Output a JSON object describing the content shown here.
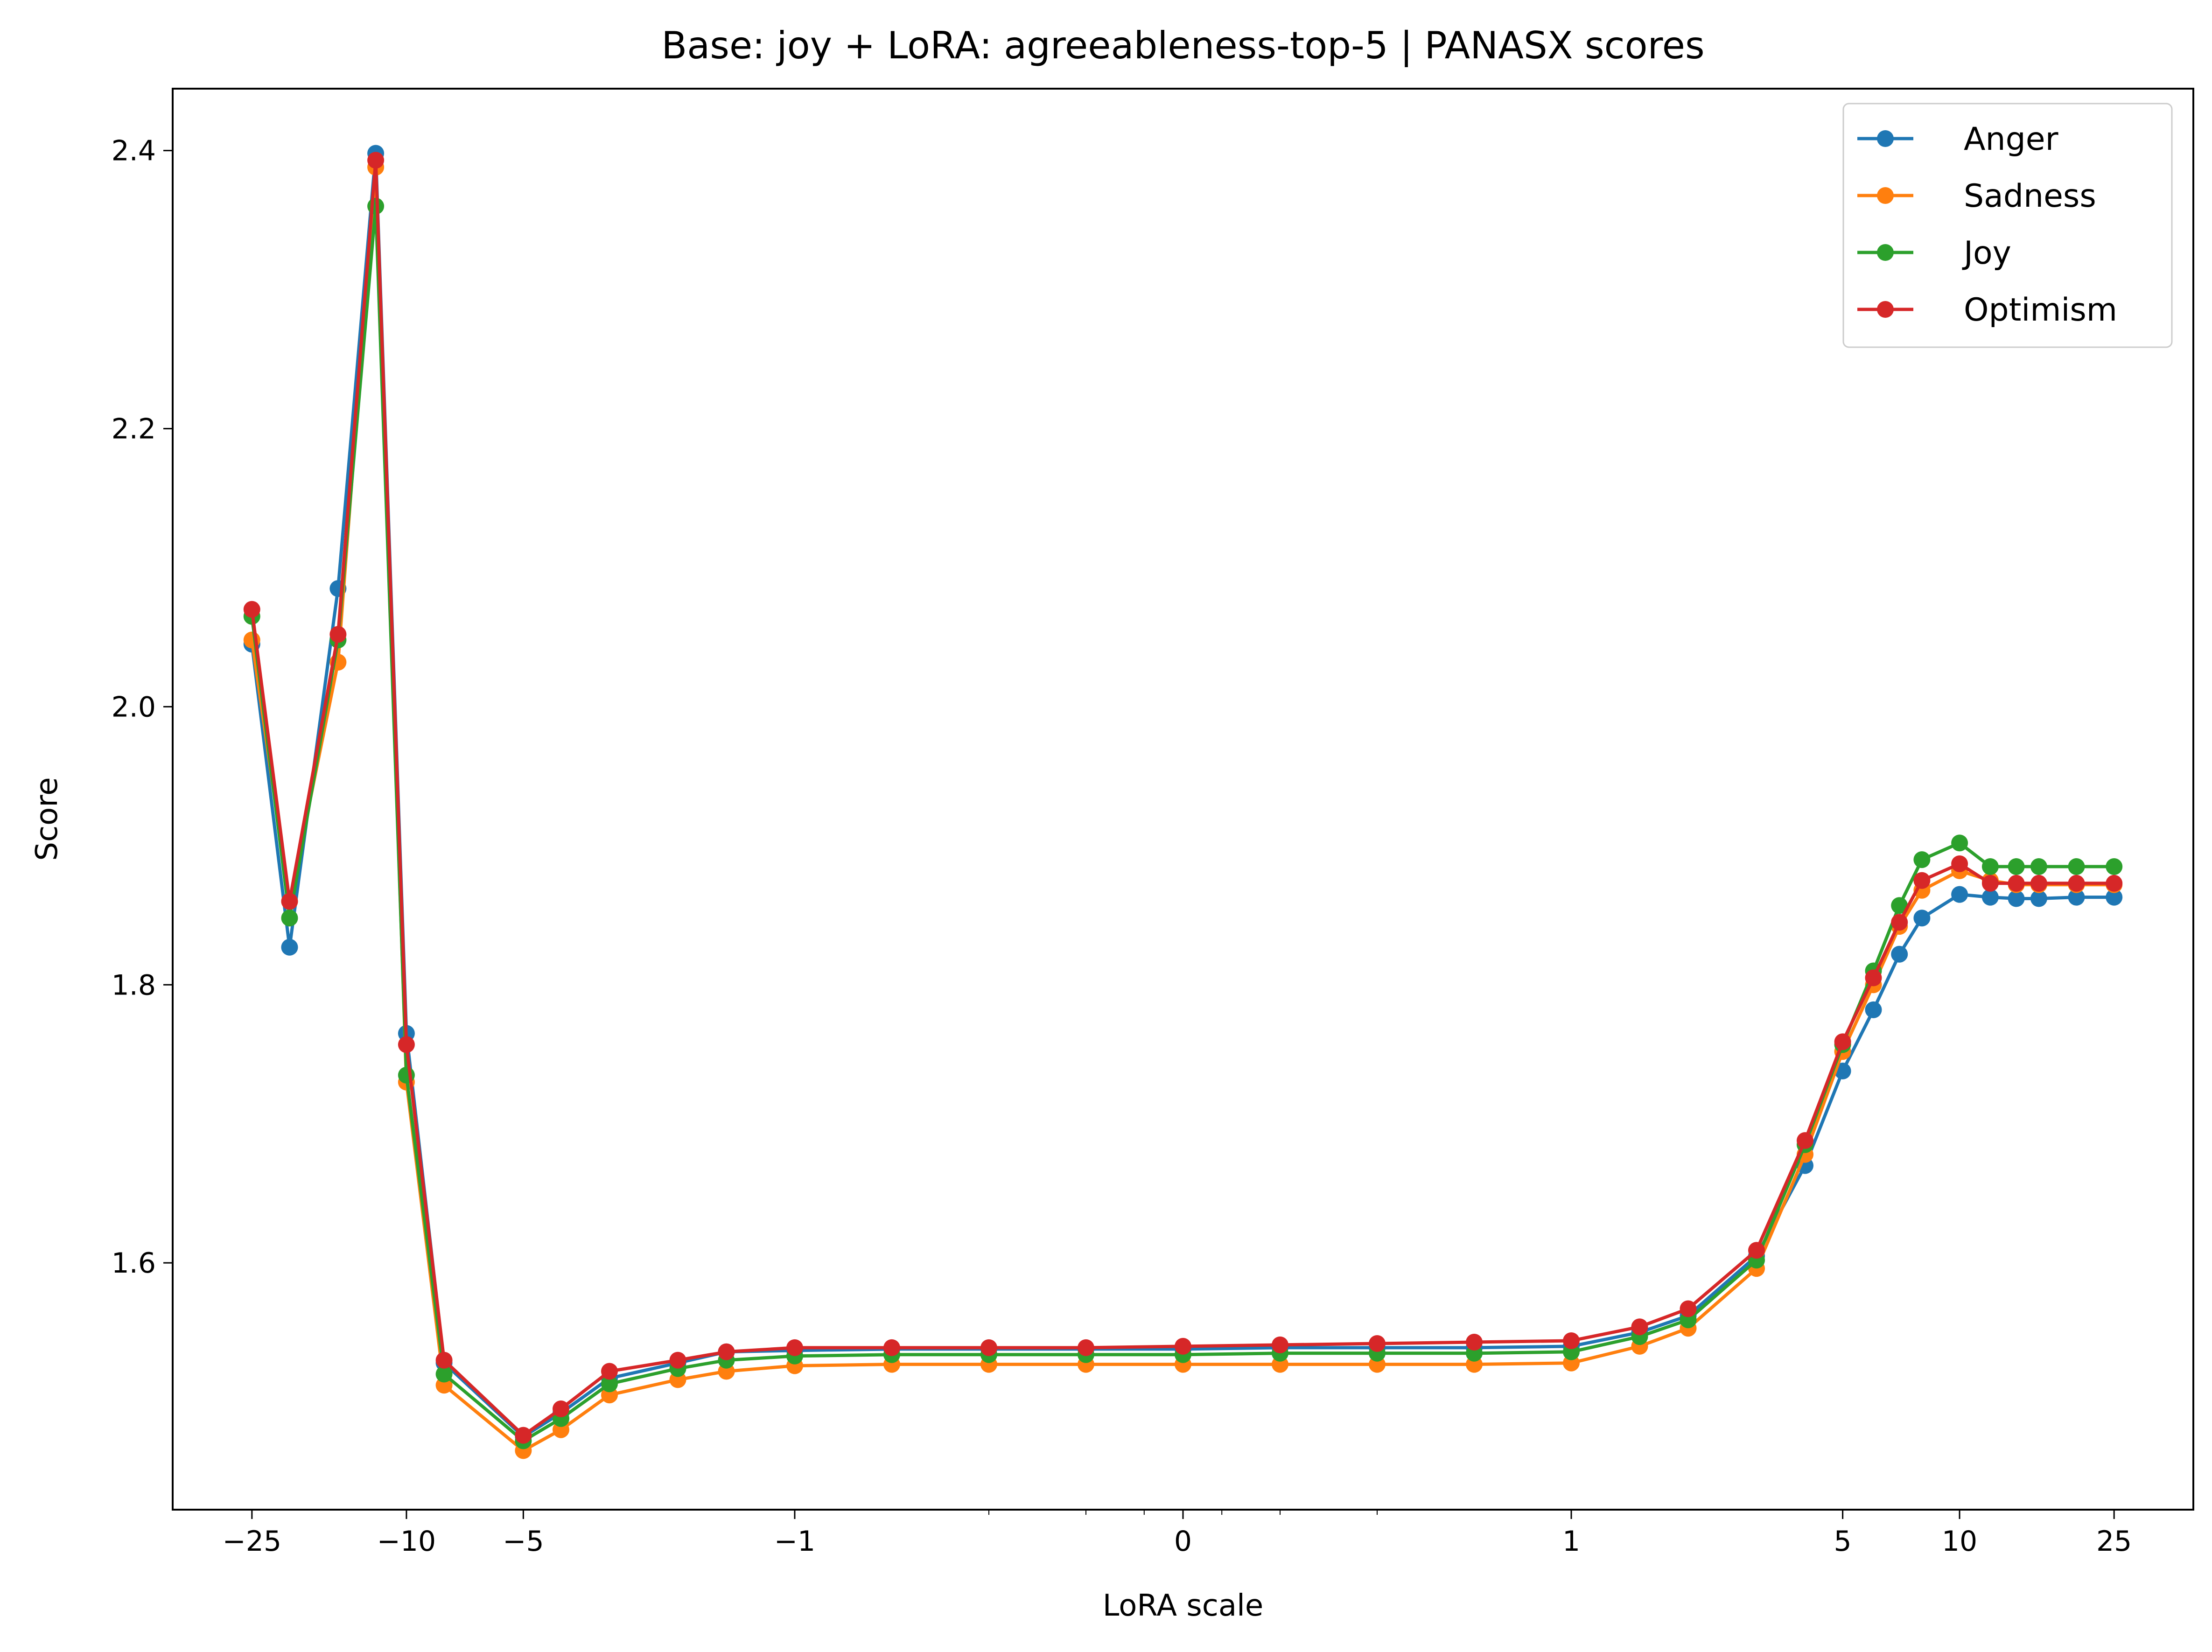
{
  "chart_data": {
    "type": "line",
    "title": "Base: joy + LoRA: agreeableness-top-5 | PANASX scores",
    "xlabel": "LoRA scale",
    "ylabel": "Score",
    "x_scale": "symlog",
    "xlim": [
      -40,
      40
    ],
    "ylim": [
      1.4225,
      2.4445
    ],
    "x_major_ticks": [
      {
        "value": -25,
        "label": "−25"
      },
      {
        "value": -10,
        "label": "−10"
      },
      {
        "value": -5,
        "label": "−5"
      },
      {
        "value": -1,
        "label": "−1"
      },
      {
        "value": 0,
        "label": "0"
      },
      {
        "value": 1,
        "label": "1"
      },
      {
        "value": 5,
        "label": "5"
      },
      {
        "value": 10,
        "label": "10"
      },
      {
        "value": 25,
        "label": "25"
      }
    ],
    "x_minor_ticks": [
      -0.5,
      -0.25,
      -0.1,
      0.1,
      0.25,
      0.5
    ],
    "y_ticks": [
      {
        "value": 1.6,
        "label": "1.6"
      },
      {
        "value": 1.8,
        "label": "1.8"
      },
      {
        "value": 2.0,
        "label": "2.0"
      },
      {
        "value": 2.2,
        "label": "2.2"
      },
      {
        "value": 2.4,
        "label": "2.4"
      }
    ],
    "legend_position": "top-right",
    "grid": false,
    "x": [
      -25,
      -20,
      -15,
      -12,
      -10,
      -8,
      -5,
      -4,
      -3,
      -2,
      -1.5,
      -1,
      -0.75,
      -0.5,
      -0.25,
      0,
      0.25,
      0.5,
      0.75,
      1,
      1.5,
      2,
      3,
      4,
      5,
      6,
      7,
      8,
      10,
      12,
      14,
      16,
      20,
      25
    ],
    "series": [
      {
        "name": "Anger",
        "color": "#1f77b4",
        "values": [
          2.045,
          1.827,
          2.085,
          2.398,
          1.765,
          1.528,
          1.475,
          1.492,
          1.517,
          1.528,
          1.536,
          1.537,
          1.538,
          1.538,
          1.538,
          1.538,
          1.539,
          1.539,
          1.539,
          1.54,
          1.55,
          1.562,
          1.605,
          1.67,
          1.738,
          1.782,
          1.822,
          1.848,
          1.865,
          1.863,
          1.862,
          1.862,
          1.863,
          1.863
        ]
      },
      {
        "name": "Sadness",
        "color": "#ff7f0e",
        "values": [
          2.048,
          1.86,
          2.032,
          2.388,
          1.73,
          1.512,
          1.465,
          1.48,
          1.505,
          1.516,
          1.522,
          1.526,
          1.527,
          1.527,
          1.527,
          1.527,
          1.527,
          1.527,
          1.527,
          1.528,
          1.54,
          1.553,
          1.596,
          1.678,
          1.752,
          1.8,
          1.842,
          1.868,
          1.882,
          1.875,
          1.872,
          1.872,
          1.872,
          1.872
        ]
      },
      {
        "name": "Joy",
        "color": "#2ca02c",
        "values": [
          2.065,
          1.848,
          2.048,
          2.36,
          1.735,
          1.52,
          1.472,
          1.488,
          1.513,
          1.524,
          1.53,
          1.533,
          1.534,
          1.534,
          1.534,
          1.534,
          1.535,
          1.535,
          1.535,
          1.536,
          1.547,
          1.559,
          1.602,
          1.685,
          1.757,
          1.81,
          1.857,
          1.89,
          1.902,
          1.885,
          1.885,
          1.885,
          1.885,
          1.885
        ]
      },
      {
        "name": "Optimism",
        "color": "#d62728",
        "values": [
          2.07,
          1.86,
          2.052,
          2.393,
          1.757,
          1.53,
          1.476,
          1.495,
          1.522,
          1.53,
          1.536,
          1.539,
          1.539,
          1.539,
          1.539,
          1.54,
          1.541,
          1.542,
          1.543,
          1.544,
          1.554,
          1.567,
          1.609,
          1.688,
          1.759,
          1.805,
          1.845,
          1.875,
          1.887,
          1.873,
          1.873,
          1.873,
          1.873,
          1.873
        ]
      }
    ]
  }
}
